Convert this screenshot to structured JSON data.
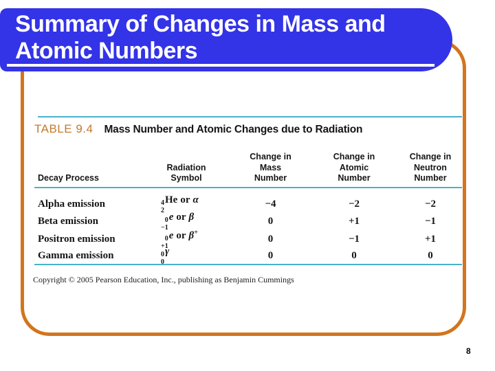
{
  "slide": {
    "title": "Summary of Changes in Mass and Atomic Numbers",
    "page_number": "8"
  },
  "table": {
    "label": "TABLE 9.4",
    "heading": "Mass Number and Atomic Changes due to Radiation",
    "columns": [
      {
        "lines": [
          "Decay Process"
        ]
      },
      {
        "lines": [
          "Radiation",
          "Symbol"
        ]
      },
      {
        "lines": [
          "Change in",
          "Mass",
          "Number"
        ]
      },
      {
        "lines": [
          "Change in",
          "Atomic",
          "Number"
        ]
      },
      {
        "lines": [
          "Change in",
          "Neutron",
          "Number"
        ]
      }
    ],
    "rows": [
      {
        "process": "Alpha emission",
        "nuc_sup": "4",
        "nuc_sub": "2",
        "nuc_base": "He",
        "joiner": "or",
        "alt": "α",
        "d_mass": "−4",
        "d_atomic": "−2",
        "d_neutron": "−2"
      },
      {
        "process": "Beta emission",
        "nuc_sup": "0",
        "nuc_sub": "−1",
        "nuc_base": "e",
        "joiner": "or",
        "alt": "β",
        "d_mass": "0",
        "d_atomic": "+1",
        "d_neutron": "−1"
      },
      {
        "process": "Positron emission",
        "nuc_sup": "0",
        "nuc_sub": "+1",
        "nuc_base": "e",
        "joiner": "or",
        "alt": "β",
        "alt_sup": "+",
        "d_mass": "0",
        "d_atomic": "−1",
        "d_neutron": "+1"
      },
      {
        "process": "Gamma emission",
        "nuc_sup": "0",
        "nuc_sub": "0",
        "nuc_base": "γ",
        "d_mass": "0",
        "d_atomic": "0",
        "d_neutron": "0"
      }
    ]
  },
  "copyright": {
    "text": "Copyright © 2005 Pearson Education, Inc., publishing as Benjamin Cummings"
  },
  "colors": {
    "title_blue": "#3333e8",
    "border_orange": "#d2751e",
    "table_label_orange": "#c27a2e",
    "rule_cyan": "#49b2cc"
  }
}
